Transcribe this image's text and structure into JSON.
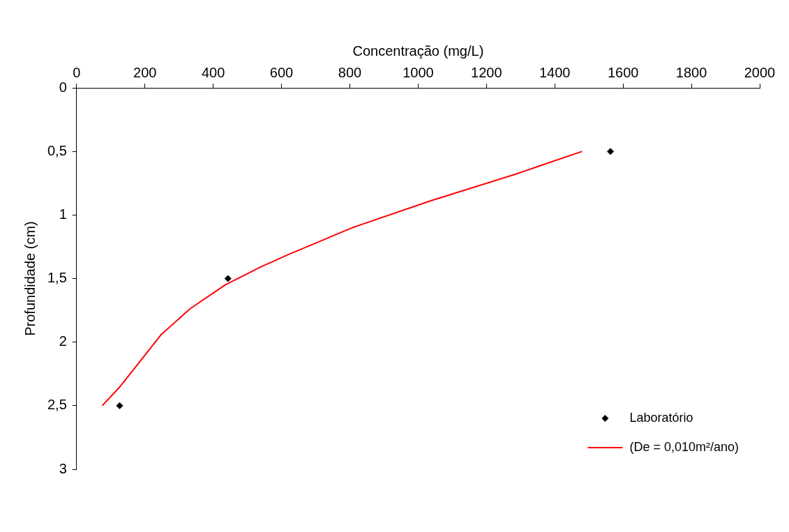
{
  "chart_data": {
    "type": "scatter",
    "xlabel": "Concentração (mg/L)",
    "ylabel": "Profundidade (cm)",
    "xlim": [
      0,
      2000
    ],
    "xticks": [
      0,
      200,
      400,
      600,
      800,
      1000,
      1200,
      1400,
      1600,
      1800,
      2000
    ],
    "ylim": [
      3,
      0
    ],
    "yticks": [
      0,
      {
        "value": 0.5,
        "label": "0,5"
      },
      1,
      {
        "value": 1.5,
        "label": "1,5"
      },
      2,
      {
        "value": 2.5,
        "label": "2,5"
      },
      3
    ],
    "grid": false,
    "legend": "bottom right",
    "series": [
      {
        "name": "Laboratório",
        "type": "scatter",
        "marker": "diamond",
        "color": "#000000",
        "x": [
          126,
          443,
          1563
        ],
        "values": [
          2.5,
          1.5,
          0.5
        ]
      },
      {
        "name": "(De = 0,010m²/ano)",
        "type": "line",
        "marker": "none",
        "line_style": "solid",
        "color": "#ff0000",
        "x": [
          75,
          124,
          186,
          248,
          331,
          435,
          538,
          621,
          807,
          1035,
          1284,
          1480
        ],
        "values": [
          2.5,
          2.36,
          2.15,
          1.94,
          1.74,
          1.55,
          1.41,
          1.31,
          1.1,
          0.89,
          0.68,
          0.5
        ]
      }
    ]
  }
}
